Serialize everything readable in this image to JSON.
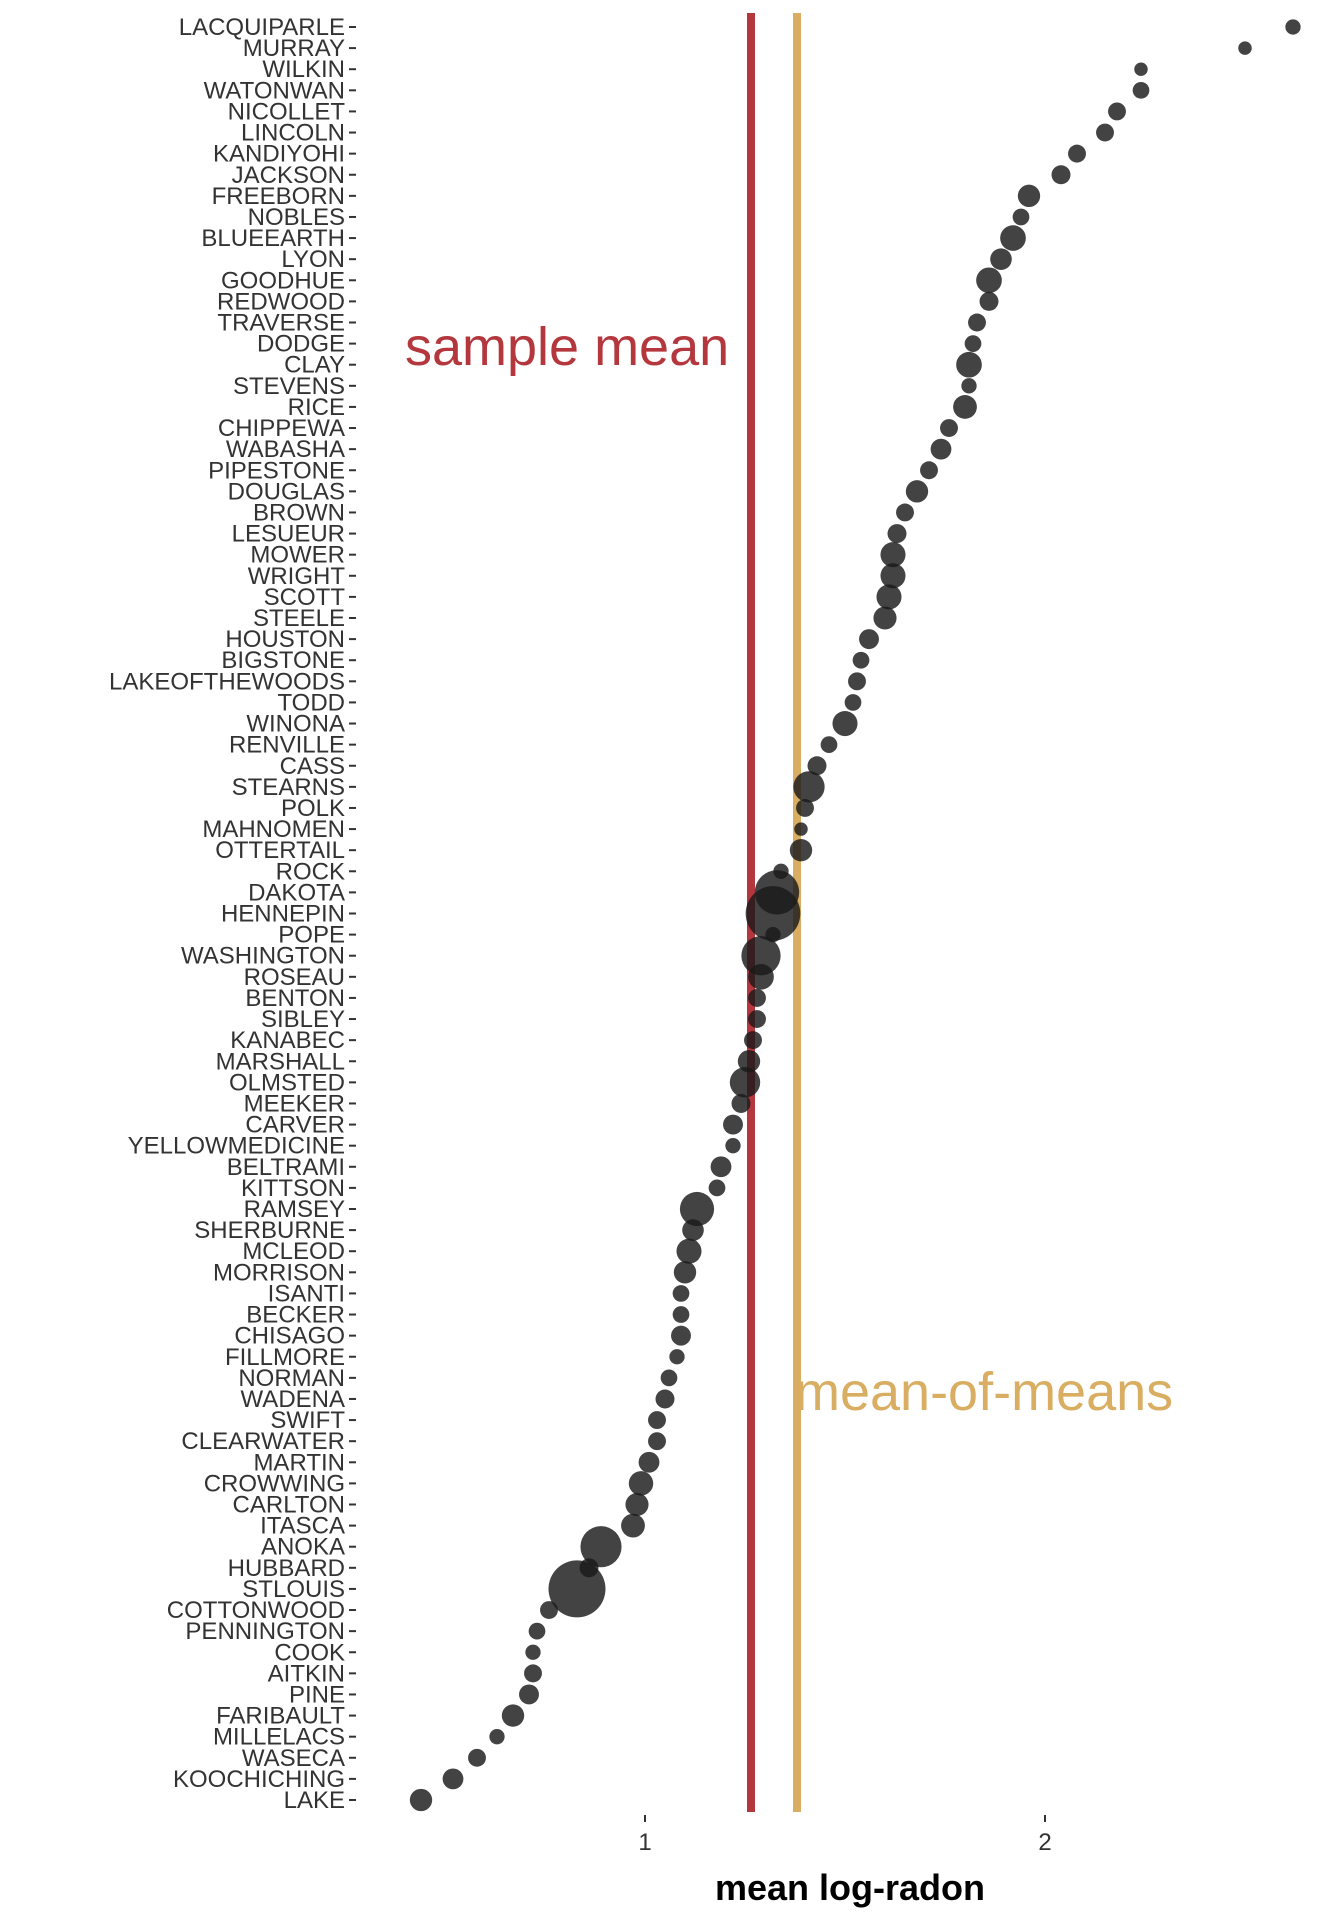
{
  "chart_data": {
    "type": "scatter",
    "xlabel": "mean log-radon",
    "ylabel": "",
    "x_ticks": [
      1,
      2
    ],
    "xlim": [
      0.3,
      2.77
    ],
    "grid": false,
    "annotations": [
      {
        "label": "sample mean",
        "x": 1.265,
        "color": "#B5373E"
      },
      {
        "label": "mean-of-means",
        "x": 1.38,
        "color": "#D9AE62"
      }
    ],
    "point_color": "#1a1a1a",
    "counties": [
      {
        "name": "LACQUIPARLE",
        "value": 2.62,
        "size": 2
      },
      {
        "name": "MURRAY",
        "value": 2.5,
        "size": 1
      },
      {
        "name": "WILKIN",
        "value": 2.24,
        "size": 1
      },
      {
        "name": "WATONWAN",
        "value": 2.24,
        "size": 3
      },
      {
        "name": "NICOLLET",
        "value": 2.18,
        "size": 4
      },
      {
        "name": "LINCOLN",
        "value": 2.15,
        "size": 4
      },
      {
        "name": "KANDIYOHI",
        "value": 2.08,
        "size": 4
      },
      {
        "name": "JACKSON",
        "value": 2.04,
        "size": 5
      },
      {
        "name": "FREEBORN",
        "value": 1.96,
        "size": 9
      },
      {
        "name": "NOBLES",
        "value": 1.94,
        "size": 3
      },
      {
        "name": "BLUEEARTH",
        "value": 1.92,
        "size": 14
      },
      {
        "name": "LYON",
        "value": 1.89,
        "size": 8
      },
      {
        "name": "GOODHUE",
        "value": 1.86,
        "size": 14
      },
      {
        "name": "REDWOOD",
        "value": 1.86,
        "size": 5
      },
      {
        "name": "TRAVERSE",
        "value": 1.83,
        "size": 4
      },
      {
        "name": "DODGE",
        "value": 1.82,
        "size": 3
      },
      {
        "name": "CLAY",
        "value": 1.81,
        "size": 14
      },
      {
        "name": "STEVENS",
        "value": 1.81,
        "size": 2
      },
      {
        "name": "RICE",
        "value": 1.8,
        "size": 11
      },
      {
        "name": "CHIPPEWA",
        "value": 1.76,
        "size": 4
      },
      {
        "name": "WABASHA",
        "value": 1.74,
        "size": 7
      },
      {
        "name": "PIPESTONE",
        "value": 1.71,
        "size": 4
      },
      {
        "name": "DOUGLAS",
        "value": 1.68,
        "size": 9
      },
      {
        "name": "BROWN",
        "value": 1.65,
        "size": 4
      },
      {
        "name": "LESUEUR",
        "value": 1.63,
        "size": 5
      },
      {
        "name": "MOWER",
        "value": 1.62,
        "size": 13
      },
      {
        "name": "WRIGHT",
        "value": 1.62,
        "size": 13
      },
      {
        "name": "SCOTT",
        "value": 1.61,
        "size": 13
      },
      {
        "name": "STEELE",
        "value": 1.6,
        "size": 10
      },
      {
        "name": "HOUSTON",
        "value": 1.56,
        "size": 6
      },
      {
        "name": "BIGSTONE",
        "value": 1.54,
        "size": 3
      },
      {
        "name": "LAKEOFTHEWOODS",
        "value": 1.53,
        "size": 4
      },
      {
        "name": "TODD",
        "value": 1.52,
        "size": 3
      },
      {
        "name": "WINONA",
        "value": 1.5,
        "size": 13
      },
      {
        "name": "RENVILLE",
        "value": 1.46,
        "size": 3
      },
      {
        "name": "CASS",
        "value": 1.43,
        "size": 5
      },
      {
        "name": "STEARNS",
        "value": 1.41,
        "size": 25
      },
      {
        "name": "POLK",
        "value": 1.4,
        "size": 4
      },
      {
        "name": "MAHNOMEN",
        "value": 1.39,
        "size": 1
      },
      {
        "name": "OTTERTAIL",
        "value": 1.39,
        "size": 9
      },
      {
        "name": "ROCK",
        "value": 1.34,
        "size": 2
      },
      {
        "name": "DAKOTA",
        "value": 1.33,
        "size": 63
      },
      {
        "name": "HENNEPIN",
        "value": 1.32,
        "size": 105
      },
      {
        "name": "POPE",
        "value": 1.32,
        "size": 2
      },
      {
        "name": "WASHINGTON",
        "value": 1.29,
        "size": 46
      },
      {
        "name": "ROSEAU",
        "value": 1.29,
        "size": 14
      },
      {
        "name": "BENTON",
        "value": 1.28,
        "size": 4
      },
      {
        "name": "SIBLEY",
        "value": 1.28,
        "size": 4
      },
      {
        "name": "KANABEC",
        "value": 1.27,
        "size": 4
      },
      {
        "name": "MARSHALL",
        "value": 1.26,
        "size": 9
      },
      {
        "name": "OLMSTED",
        "value": 1.25,
        "size": 23
      },
      {
        "name": "MEEKER",
        "value": 1.24,
        "size": 5
      },
      {
        "name": "CARVER",
        "value": 1.22,
        "size": 6
      },
      {
        "name": "YELLOWMEDICINE",
        "value": 1.22,
        "size": 2
      },
      {
        "name": "BELTRAMI",
        "value": 1.19,
        "size": 7
      },
      {
        "name": "KITTSON",
        "value": 1.18,
        "size": 3
      },
      {
        "name": "RAMSEY",
        "value": 1.13,
        "size": 32
      },
      {
        "name": "SHERBURNE",
        "value": 1.12,
        "size": 8
      },
      {
        "name": "MCLEOD",
        "value": 1.11,
        "size": 13
      },
      {
        "name": "MORRISON",
        "value": 1.1,
        "size": 9
      },
      {
        "name": "ISANTI",
        "value": 1.09,
        "size": 3
      },
      {
        "name": "BECKER",
        "value": 1.09,
        "size": 3
      },
      {
        "name": "CHISAGO",
        "value": 1.09,
        "size": 6
      },
      {
        "name": "FILLMORE",
        "value": 1.08,
        "size": 2
      },
      {
        "name": "NORMAN",
        "value": 1.06,
        "size": 3
      },
      {
        "name": "WADENA",
        "value": 1.05,
        "size": 5
      },
      {
        "name": "SWIFT",
        "value": 1.03,
        "size": 4
      },
      {
        "name": "CLEARWATER",
        "value": 1.03,
        "size": 4
      },
      {
        "name": "MARTIN",
        "value": 1.01,
        "size": 7
      },
      {
        "name": "CROWWING",
        "value": 0.99,
        "size": 12
      },
      {
        "name": "CARLTON",
        "value": 0.98,
        "size": 10
      },
      {
        "name": "ITASCA",
        "value": 0.97,
        "size": 11
      },
      {
        "name": "ANOKA",
        "value": 0.89,
        "size": 52
      },
      {
        "name": "HUBBARD",
        "value": 0.86,
        "size": 5
      },
      {
        "name": "STLOUIS",
        "value": 0.83,
        "size": 116
      },
      {
        "name": "COTTONWOOD",
        "value": 0.76,
        "size": 4
      },
      {
        "name": "PENNINGTON",
        "value": 0.73,
        "size": 3
      },
      {
        "name": "COOK",
        "value": 0.72,
        "size": 2
      },
      {
        "name": "AITKIN",
        "value": 0.72,
        "size": 4
      },
      {
        "name": "PINE",
        "value": 0.71,
        "size": 6
      },
      {
        "name": "FARIBAULT",
        "value": 0.67,
        "size": 9
      },
      {
        "name": "MILLELACS",
        "value": 0.63,
        "size": 2
      },
      {
        "name": "WASECA",
        "value": 0.58,
        "size": 4
      },
      {
        "name": "KOOCHICHING",
        "value": 0.52,
        "size": 7
      },
      {
        "name": "LAKE",
        "value": 0.44,
        "size": 9
      }
    ]
  }
}
